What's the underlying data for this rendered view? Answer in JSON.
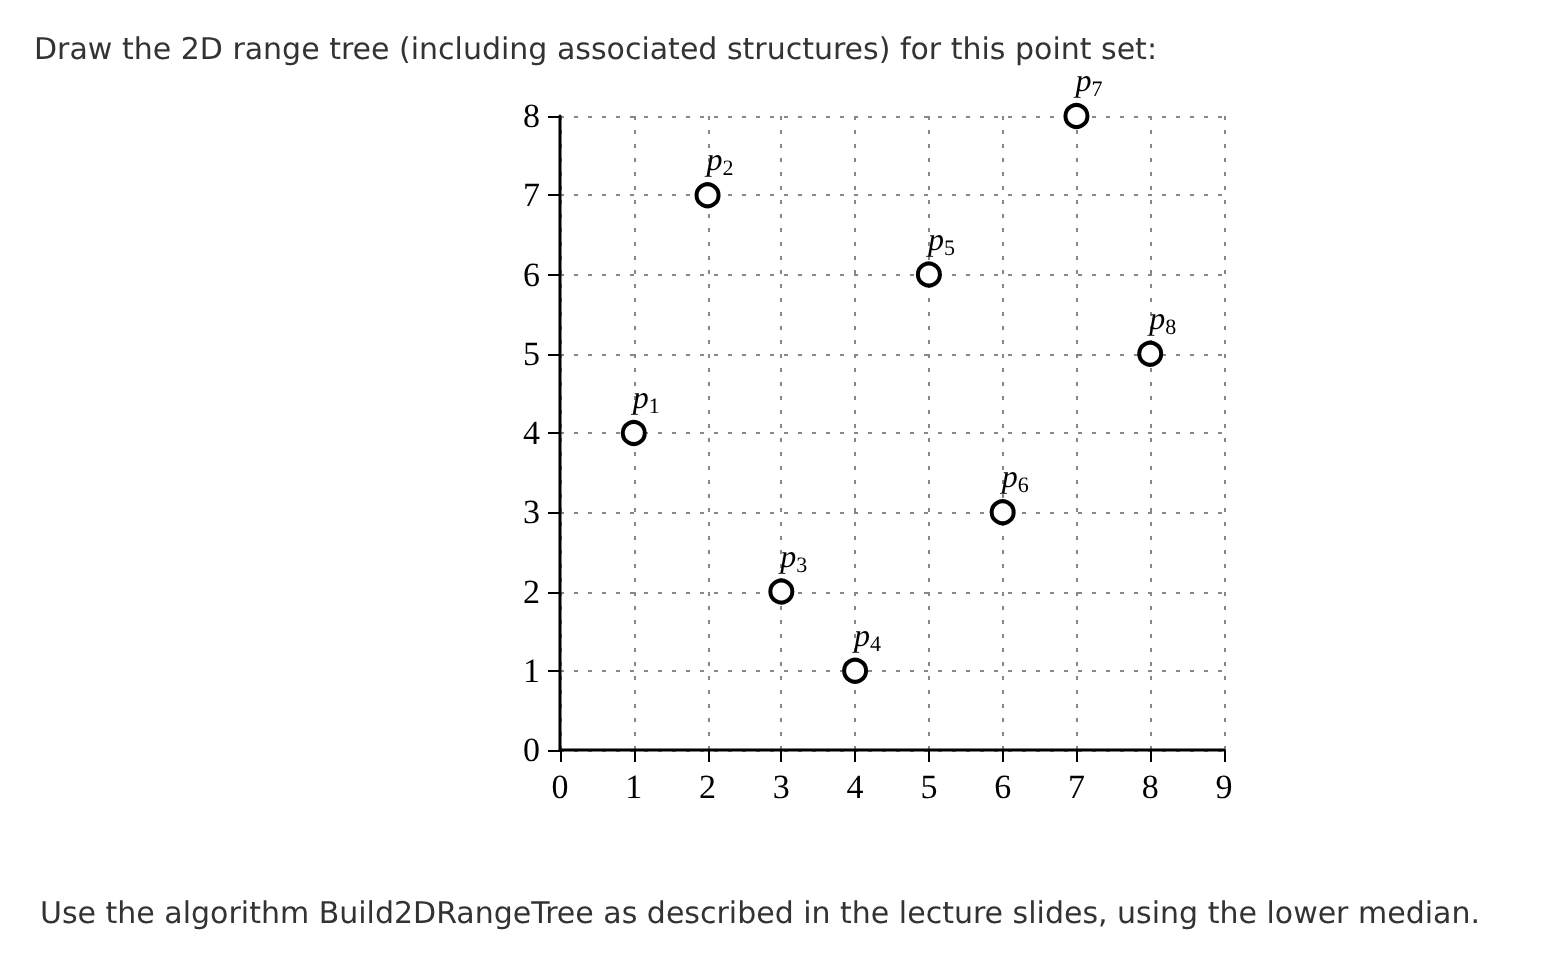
{
  "chart_data": {
    "type": "scatter",
    "title": "Draw the 2D range tree (including associated structures) for this point set:",
    "annotations": [
      "Use the algorithm Build2DRangeTree as described in the lecture slides, using the lower median."
    ],
    "series": [
      {
        "name": "p$_{1}$",
        "color": "#000000",
        "x": [
          1
        ],
        "values": [
          4
        ]
      },
      {
        "name": "p$_{2}$",
        "color": "#000000",
        "x": [
          2
        ],
        "values": [
          7
        ]
      },
      {
        "name": "p$_{3}$",
        "color": "#000000",
        "x": [
          3
        ],
        "values": [
          2
        ]
      },
      {
        "name": "p$_{4}$",
        "color": "#000000",
        "x": [
          4
        ],
        "values": [
          1
        ]
      },
      {
        "name": "p$_{5}$",
        "color": "#000000",
        "x": [
          5
        ],
        "values": [
          6
        ]
      },
      {
        "name": "p$_{6}$",
        "color": "#000000",
        "x": [
          6
        ],
        "values": [
          3
        ]
      },
      {
        "name": "p$_{7}$",
        "color": "#000000",
        "x": [
          7
        ],
        "values": [
          8
        ]
      },
      {
        "name": "p$_{8}$",
        "color": "#000000",
        "x": [
          8
        ],
        "values": [
          5
        ]
      }
    ],
    "xlim": [
      0,
      9
    ],
    "ylim": [
      0,
      8
    ],
    "xticks": [
      0,
      1,
      2,
      3,
      4,
      5,
      6,
      7,
      8,
      9
    ],
    "yticks": [
      0,
      1,
      2,
      3,
      4,
      5,
      6,
      7,
      8
    ],
    "grid": true,
    "legend": false,
    "marker": "circle"
  }
}
